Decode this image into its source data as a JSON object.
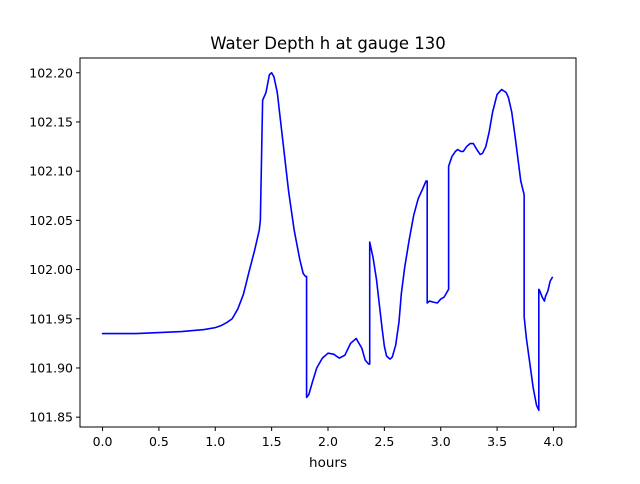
{
  "chart_data": {
    "type": "line",
    "title": "Water Depth h at gauge 130",
    "xlabel": "hours",
    "ylabel": "",
    "xlim": [
      -0.2,
      4.2
    ],
    "ylim": [
      101.84,
      102.215
    ],
    "xticks": [
      {
        "value": 0.0,
        "label": "0.0"
      },
      {
        "value": 0.5,
        "label": "0.5"
      },
      {
        "value": 1.0,
        "label": "1.0"
      },
      {
        "value": 1.5,
        "label": "1.5"
      },
      {
        "value": 2.0,
        "label": "2.0"
      },
      {
        "value": 2.5,
        "label": "2.5"
      },
      {
        "value": 3.0,
        "label": "3.0"
      },
      {
        "value": 3.5,
        "label": "3.5"
      },
      {
        "value": 4.0,
        "label": "4.0"
      }
    ],
    "yticks": [
      {
        "value": 101.85,
        "label": "101.85"
      },
      {
        "value": 101.9,
        "label": "101.90"
      },
      {
        "value": 101.95,
        "label": "101.95"
      },
      {
        "value": 102.0,
        "label": "102.00"
      },
      {
        "value": 102.05,
        "label": "102.05"
      },
      {
        "value": 102.1,
        "label": "102.10"
      },
      {
        "value": 102.15,
        "label": "102.15"
      },
      {
        "value": 102.2,
        "label": "102.20"
      }
    ],
    "grid": false,
    "series": [
      {
        "color": "#0000ff",
        "x": [
          0.0,
          0.3,
          0.5,
          0.7,
          0.9,
          1.0,
          1.05,
          1.1,
          1.15,
          1.2,
          1.25,
          1.3,
          1.35,
          1.39,
          1.4,
          1.42,
          1.45,
          1.48,
          1.5,
          1.52,
          1.55,
          1.6,
          1.65,
          1.7,
          1.75,
          1.78,
          1.8,
          1.81,
          1.81,
          1.83,
          1.86,
          1.9,
          1.95,
          2.0,
          2.05,
          2.1,
          2.15,
          2.2,
          2.25,
          2.3,
          2.33,
          2.36,
          2.37,
          2.37,
          2.4,
          2.43,
          2.46,
          2.48,
          2.5,
          2.52,
          2.55,
          2.57,
          2.6,
          2.63,
          2.65,
          2.68,
          2.72,
          2.76,
          2.8,
          2.84,
          2.87,
          2.88,
          2.88,
          2.9,
          2.93,
          2.97,
          3.0,
          3.03,
          3.07,
          3.07,
          3.1,
          3.13,
          3.15,
          3.18,
          3.2,
          3.23,
          3.26,
          3.29,
          3.32,
          3.35,
          3.37,
          3.4,
          3.43,
          3.46,
          3.5,
          3.54,
          3.58,
          3.6,
          3.63,
          3.66,
          3.69,
          3.71,
          3.74,
          3.74,
          3.76,
          3.79,
          3.82,
          3.85,
          3.87,
          3.87,
          3.88,
          3.9,
          3.92,
          3.93,
          3.95,
          3.96,
          3.97,
          3.98,
          3.99
        ],
        "y": [
          101.935,
          101.935,
          101.936,
          101.937,
          101.939,
          101.941,
          101.943,
          101.946,
          101.95,
          101.96,
          101.975,
          101.998,
          102.02,
          102.04,
          102.05,
          102.172,
          102.18,
          102.198,
          102.2,
          102.196,
          102.18,
          102.13,
          102.08,
          102.04,
          102.01,
          101.996,
          101.993,
          101.993,
          101.87,
          101.873,
          101.885,
          101.9,
          101.91,
          101.915,
          101.914,
          101.91,
          101.913,
          101.925,
          101.93,
          101.92,
          101.908,
          101.904,
          101.904,
          102.028,
          102.012,
          101.99,
          101.96,
          101.94,
          101.922,
          101.912,
          101.909,
          101.911,
          101.923,
          101.947,
          101.975,
          102.002,
          102.03,
          102.055,
          102.072,
          102.082,
          102.09,
          102.09,
          101.966,
          101.968,
          101.967,
          101.966,
          101.97,
          101.972,
          101.98,
          102.105,
          102.115,
          102.12,
          102.122,
          102.12,
          102.12,
          102.125,
          102.128,
          102.128,
          102.122,
          102.117,
          102.118,
          102.125,
          102.14,
          102.16,
          102.178,
          102.183,
          102.18,
          102.175,
          102.16,
          102.135,
          102.108,
          102.09,
          102.076,
          101.952,
          101.93,
          101.905,
          101.88,
          101.862,
          101.857,
          101.98,
          101.978,
          101.972,
          101.968,
          101.973,
          101.978,
          101.983,
          101.988,
          101.99,
          101.992
        ]
      }
    ]
  }
}
